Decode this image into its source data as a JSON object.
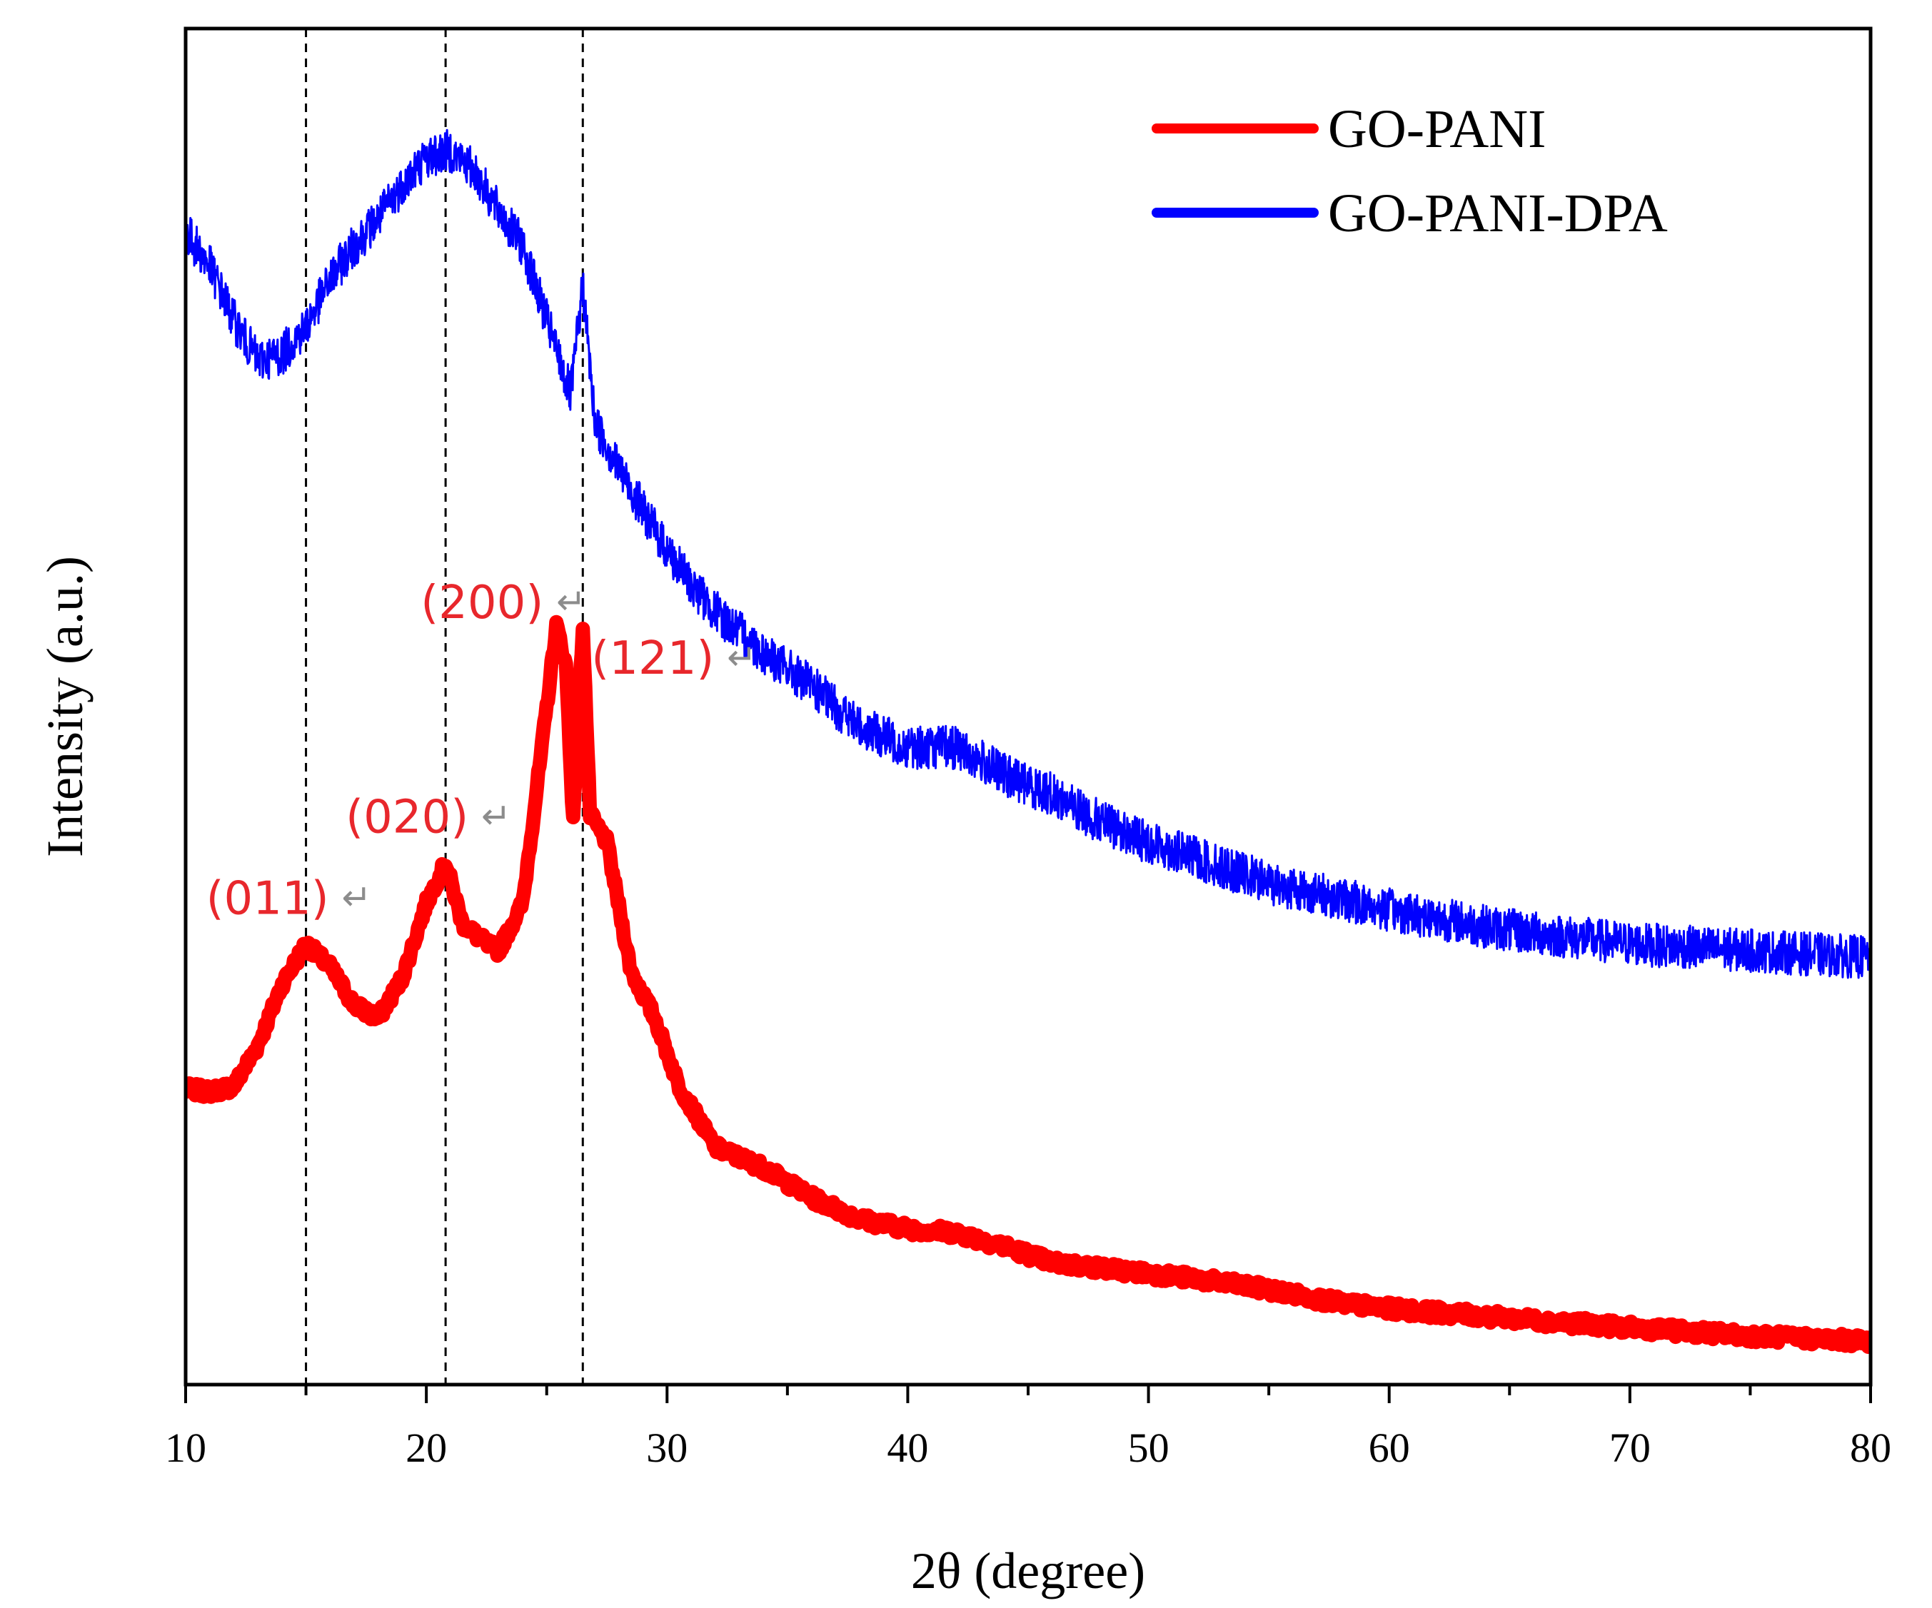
{
  "chart_data": {
    "type": "line",
    "title": "",
    "xlabel": "2θ (degree)",
    "ylabel": "Intensity (a.u.)",
    "xlim": [
      10,
      80
    ],
    "ylim": [
      0,
      100
    ],
    "x_ticks": [
      10,
      20,
      30,
      40,
      50,
      60,
      70,
      80
    ],
    "x_tick_labels": [
      "10",
      "20",
      "30",
      "40",
      "50",
      "60",
      "70",
      "80"
    ],
    "y_ticks_shown": false,
    "legend": {
      "position": "top-right",
      "entries": [
        "GO-PANI",
        "GO-PANI-DPA"
      ]
    },
    "reference_lines_x": [
      15.0,
      20.8,
      26.5
    ],
    "series": [
      {
        "name": "GO-PANI",
        "color": "#ff0000",
        "x": [
          10,
          11,
          12,
          13,
          14,
          15,
          16,
          17,
          18,
          19,
          20,
          20.8,
          21.5,
          22.5,
          23,
          24,
          24.8,
          25.4,
          25.8,
          26.1,
          26.5,
          26.8,
          27.5,
          28.5,
          29.5,
          30.5,
          32,
          34,
          36,
          38,
          40,
          42,
          44,
          46,
          48,
          50,
          52,
          55,
          58,
          60,
          65,
          70,
          75,
          80
        ],
        "y": [
          21.8,
          21.6,
          22.0,
          25.0,
          29.5,
          32.5,
          30.8,
          28.0,
          27.0,
          30.0,
          35.5,
          38.5,
          34.0,
          32.5,
          32.0,
          35.5,
          47.0,
          56.0,
          53.0,
          41.5,
          56.0,
          42.0,
          40.0,
          30.5,
          27.0,
          22.0,
          17.5,
          16.0,
          13.8,
          12.2,
          11.5,
          11.2,
          10.2,
          9.0,
          8.6,
          8.2,
          7.8,
          7.0,
          6.0,
          5.6,
          4.9,
          4.2,
          3.6,
          3.2
        ]
      },
      {
        "name": "GO-PANI-DPA",
        "color": "#0000ff",
        "x": [
          10,
          11,
          12,
          13,
          14,
          15,
          16,
          17,
          18,
          19,
          20,
          21,
          22,
          23,
          24,
          25,
          26,
          26.5,
          27,
          28,
          29,
          30,
          31,
          32,
          34,
          36,
          38,
          40,
          42,
          44,
          46,
          48,
          50,
          55,
          60,
          65,
          70,
          75,
          80
        ],
        "y": [
          85.0,
          82.5,
          78.5,
          75.5,
          76.0,
          78.0,
          81.5,
          84.0,
          86.0,
          88.5,
          90.5,
          91.0,
          89.5,
          86.5,
          84.0,
          78.5,
          73.0,
          81.0,
          71.0,
          67.5,
          64.5,
          61.5,
          59.0,
          57.0,
          54.0,
          51.5,
          48.5,
          47.0,
          47.0,
          45.0,
          43.5,
          41.5,
          40.0,
          37.0,
          35.0,
          33.5,
          32.5,
          32.0,
          31.5
        ]
      }
    ],
    "annotations": [
      {
        "text": "(011)",
        "x": 15.0,
        "y": 32.5
      },
      {
        "text": "(020)",
        "x": 20.8,
        "y": 38.5
      },
      {
        "text": "(200)",
        "x": 25.4,
        "y": 56.0
      },
      {
        "text": "(121)",
        "x": 26.5,
        "y": 56.0
      }
    ],
    "annotation_arrow": "↵"
  }
}
